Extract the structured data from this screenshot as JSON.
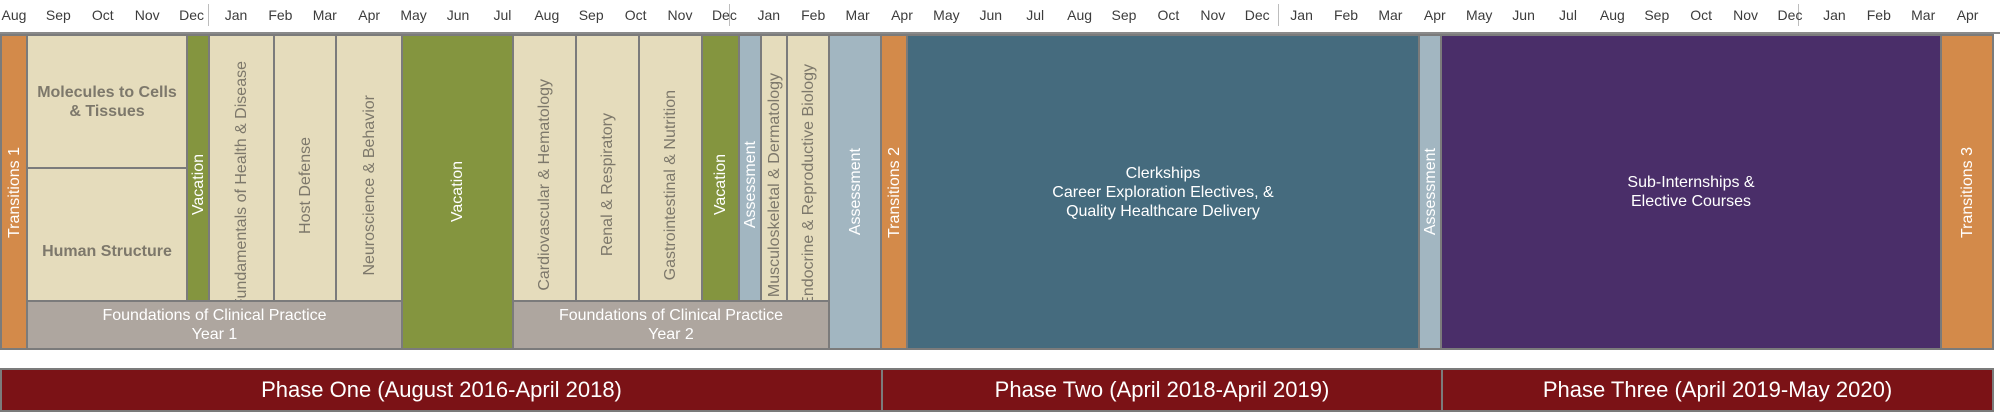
{
  "months": [
    "Aug",
    "Sep",
    "Oct",
    "Nov",
    "Dec",
    "Jan",
    "Feb",
    "Mar",
    "Apr",
    "May",
    "Jun",
    "Jul",
    "Aug",
    "Sep",
    "Oct",
    "Nov",
    "Dec",
    "Jan",
    "Feb",
    "Mar",
    "Apr",
    "May",
    "Jun",
    "Jul",
    "Aug",
    "Sep",
    "Oct",
    "Nov",
    "Dec",
    "Jan",
    "Feb",
    "Mar",
    "Apr",
    "May",
    "Jun",
    "Jul",
    "Aug",
    "Sep",
    "Oct",
    "Nov",
    "Dec",
    "Jan",
    "Feb",
    "Mar",
    "Apr"
  ],
  "blocks": {
    "transitions1": "Transitions 1",
    "molecules": "Molecules to Cells\n& Tissues",
    "human_structure": "Human Structure",
    "vacation1": "Vacation",
    "fundamentals": "Fundamentals of Health & Disease",
    "host_defense": "Host Defense",
    "neuroscience": "Neuroscience & Behavior",
    "vacation2": "Vacation",
    "foundations1": "Foundations of Clinical Practice\nYear 1",
    "cardiovascular": "Cardiovascular & Hematology",
    "renal": "Renal & Respiratory",
    "gastro": "Gastrointestinal & Nutrition",
    "vacation3": "Vacation",
    "assessment1": "Assessment",
    "musculoskeletal": "Musculoskeletal & Dermatology",
    "endocrine": "Endocrine & Reproductive Biology",
    "foundations2": "Foundations of Clinical Practice\nYear 2",
    "assessment2": "Assessment",
    "transitions2": "Transitions 2",
    "clerkships": "Clerkships\nCareer Exploration Electives, &\nQuality Healthcare Delivery",
    "assessment3": "Assessment",
    "subinternships": "Sub-Internships &\nElective Courses",
    "transitions3": "Transitions 3"
  },
  "phases": {
    "one": "Phase One (August 2016-April 2018)",
    "two": "Phase Two (April 2018-April 2019)",
    "three": "Phase Three (April 2019-May 2020)"
  },
  "colors": {
    "transitions": "#d38a4a",
    "course": "#e5dcbc",
    "vacation": "#84953f",
    "assessment": "#a2b6c1",
    "foundations": "#aea69f",
    "clerkships": "#456b7e",
    "subinternships": "#4a2e69",
    "phase": "#7b1216"
  }
}
